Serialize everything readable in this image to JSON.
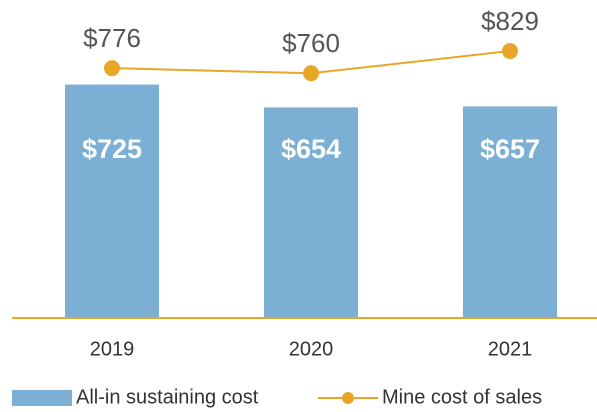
{
  "chart_data": {
    "type": "combo",
    "categories": [
      "2019",
      "2020",
      "2021"
    ],
    "series": [
      {
        "name": "All-in sustaining cost",
        "type": "bar",
        "color": "#7bafd4",
        "values": [
          725,
          654,
          657
        ],
        "value_labels": [
          "$725",
          "$654",
          "$657"
        ]
      },
      {
        "name": "Mine cost of sales",
        "type": "line",
        "color": "#e8a628",
        "values": [
          776,
          760,
          829
        ],
        "value_labels": [
          "$776",
          "$760",
          "$829"
        ]
      }
    ]
  }
}
